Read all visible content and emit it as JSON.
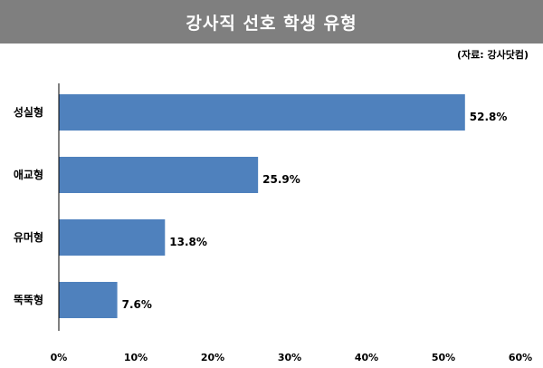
{
  "header": {
    "title": "강사직 선호 학생 유형",
    "source": "(자료: 강사닷컴)"
  },
  "colors": {
    "title_bg": "#7f7f7f",
    "bar": "#4f81bd",
    "axis": "#000000"
  },
  "chart_data": {
    "type": "bar",
    "orientation": "horizontal",
    "title": "강사직 선호 학생 유형",
    "categories": [
      "성실형",
      "애교형",
      "유머형",
      "뚝뚝형"
    ],
    "values": [
      52.8,
      25.9,
      13.8,
      7.6
    ],
    "value_labels": [
      "52.8%",
      "25.9%",
      "13.8%",
      "7.6%"
    ],
    "xlim": [
      0,
      60
    ],
    "x_ticks": [
      0,
      10,
      20,
      30,
      40,
      50,
      60
    ],
    "x_tick_labels": [
      "0%",
      "10%",
      "20%",
      "30%",
      "40%",
      "50%",
      "60%"
    ],
    "grid": false,
    "legend": "none"
  }
}
